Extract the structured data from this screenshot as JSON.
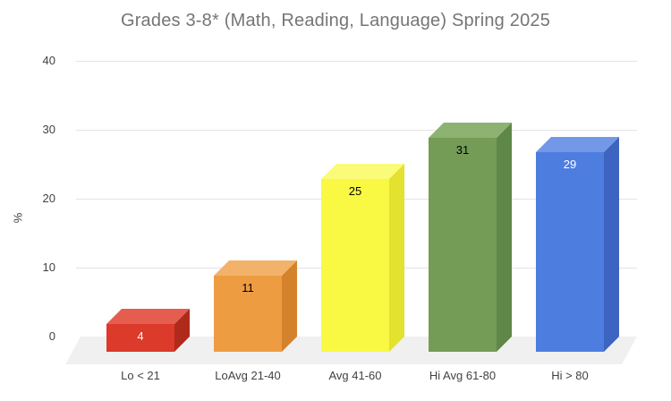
{
  "chart_data": {
    "type": "bar",
    "style": "3d",
    "title": "Grades 3-8* (Math, Reading, Language) Spring 2025",
    "xlabel": "",
    "ylabel": "%",
    "ylim": [
      0,
      40
    ],
    "yticks": [
      0,
      10,
      20,
      30,
      40
    ],
    "categories": [
      "Lo < 21",
      "LoAvg 21-40",
      "Avg 41-60",
      "Hi Avg 61-80",
      "Hi > 80"
    ],
    "values": [
      4,
      11,
      25,
      31,
      29
    ],
    "grid": true,
    "legend": "none",
    "background_color": "#ffffff",
    "floor_color": "#f0f0f0",
    "gridline_color": "#e3e3e3",
    "title_color": "#757575",
    "axis_label_color": "#424242",
    "bar_colors": [
      {
        "front": "#dc3a2a",
        "top": "#e55d4f",
        "side": "#b02a1c",
        "label_color": "#ffffff"
      },
      {
        "front": "#ee9c42",
        "top": "#f3b269",
        "side": "#d4832c",
        "label_color": "#000000"
      },
      {
        "front": "#f9f943",
        "top": "#fbfb7a",
        "side": "#e2e22f",
        "label_color": "#000000"
      },
      {
        "front": "#749c57",
        "top": "#8db271",
        "side": "#5f8747",
        "label_color": "#000000"
      },
      {
        "front": "#4e7de0",
        "top": "#7398e8",
        "side": "#3c64c0",
        "label_color": "#ffffff"
      }
    ]
  }
}
